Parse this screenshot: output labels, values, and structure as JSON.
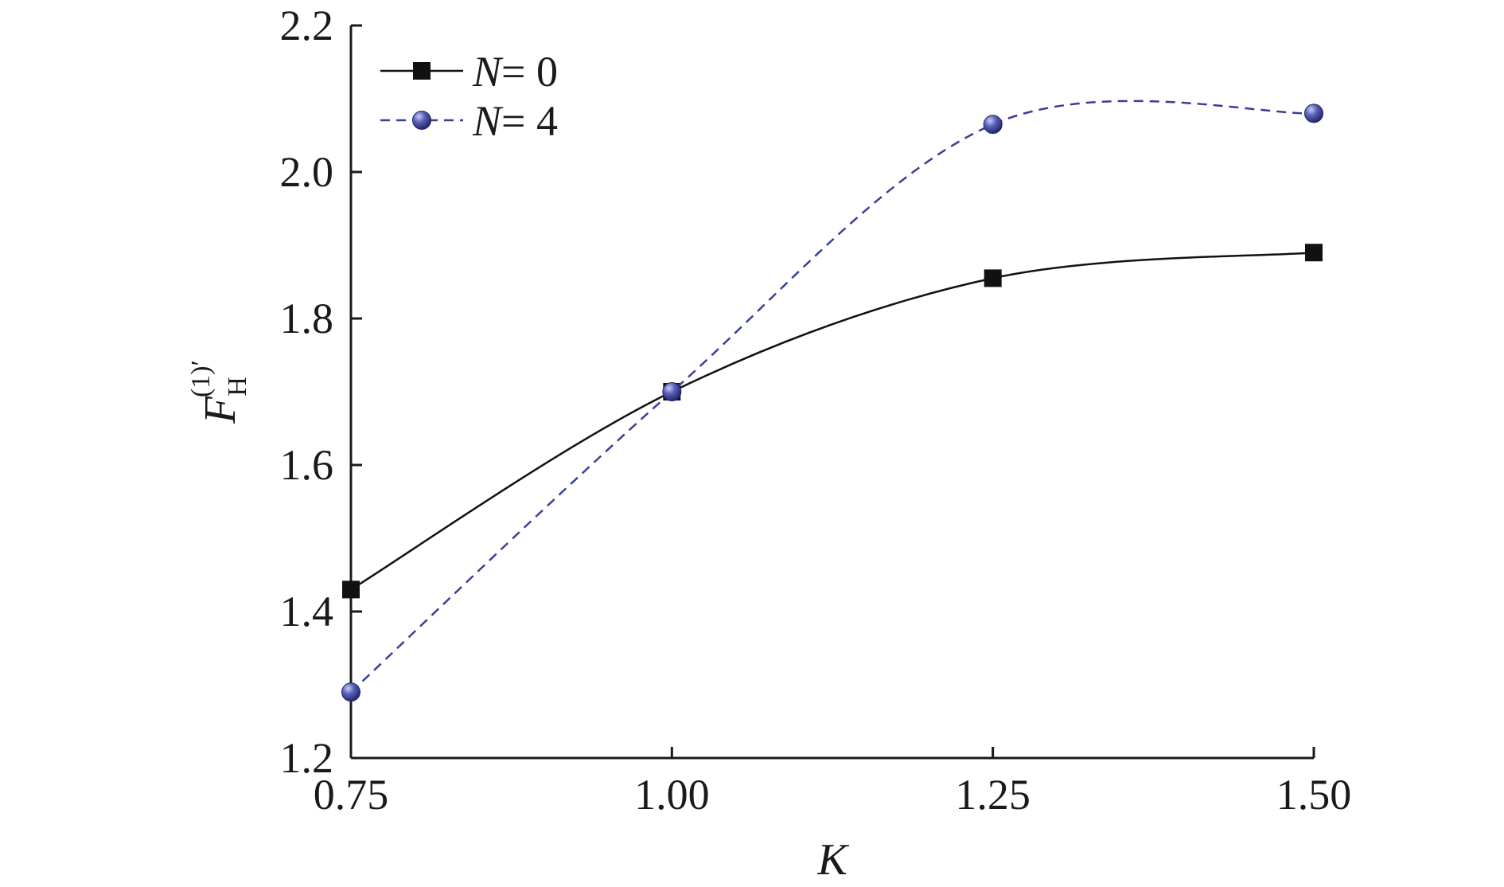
{
  "chart_data": {
    "type": "line",
    "title": "",
    "xlabel": "K",
    "ylabel": {
      "main": "F",
      "subscript": "H",
      "superscript": "(1)′"
    },
    "xlim": [
      0.75,
      1.5
    ],
    "ylim": [
      1.2,
      2.2
    ],
    "x_ticks": [
      0.75,
      1.0,
      1.25,
      1.5
    ],
    "x_tick_labels": [
      "0.75",
      "1.00",
      "1.25",
      "1.50"
    ],
    "y_ticks": [
      1.2,
      1.4,
      1.6,
      1.8,
      2.0,
      2.2
    ],
    "y_tick_labels": [
      "1.2",
      "1.4",
      "1.6",
      "1.8",
      "2.0",
      "2.2"
    ],
    "grid": false,
    "legend_position": "top-left",
    "series": [
      {
        "name": "N= 0",
        "label_var": "N",
        "label_rest": "= 0",
        "x": [
          0.75,
          1.0,
          1.25,
          1.5
        ],
        "y": [
          1.43,
          1.7,
          1.855,
          1.89
        ],
        "color": "#111111",
        "line_style": "solid",
        "marker": "square"
      },
      {
        "name": "N= 4",
        "label_var": "N",
        "label_rest": "= 4",
        "x": [
          0.75,
          1.0,
          1.25,
          1.5
        ],
        "y": [
          1.29,
          1.7,
          2.065,
          2.08
        ],
        "color": "#3a3f96",
        "line_style": "dashed",
        "marker": "circle"
      }
    ]
  }
}
